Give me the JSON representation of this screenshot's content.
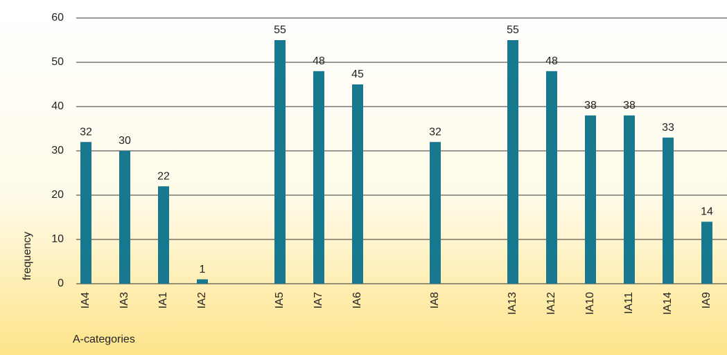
{
  "chart_data": {
    "type": "bar",
    "x_label": "A-categories",
    "y_label": "frequency",
    "categories": [
      "IA4",
      "IA3",
      "IA1",
      "IA2",
      null,
      "IA5",
      "IA7",
      "IA6",
      null,
      "IA8",
      null,
      "IA13",
      "IA12",
      "IA10",
      "IA11",
      "IA14",
      "IA9"
    ],
    "values": [
      32,
      30,
      22,
      1,
      null,
      55,
      48,
      45,
      null,
      32,
      null,
      55,
      48,
      38,
      38,
      33,
      14
    ],
    "color": "#18798e",
    "ylim": [
      0,
      60
    ],
    "yticks": [
      0,
      10,
      20,
      30,
      40,
      50,
      60
    ],
    "grid": true
  }
}
